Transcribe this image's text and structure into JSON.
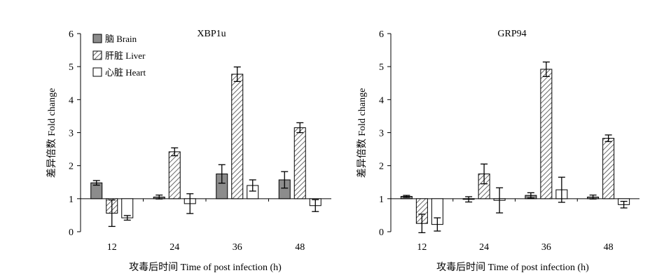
{
  "chart_data": [
    {
      "type": "bar",
      "title": "XBP1u",
      "xlabel": "攻毒后时间 Time of post infection (h)",
      "ylabel": "差异倍数 Fold change",
      "categories": [
        "12",
        "24",
        "36",
        "48"
      ],
      "ylim": [
        0,
        6
      ],
      "yticks": [
        "0",
        "1",
        "2",
        "3",
        "4",
        "5",
        "6"
      ],
      "baseline": 1,
      "legend_position": "top-left",
      "series": [
        {
          "name": "脑 Brain",
          "fill": "gray",
          "values": [
            1.48,
            1.05,
            1.75,
            1.57
          ],
          "errors": [
            0.07,
            0.06,
            0.28,
            0.25
          ]
        },
        {
          "name": "肝脏 Liver",
          "fill": "hatched",
          "values": [
            0.56,
            2.42,
            4.77,
            3.15
          ],
          "errors": [
            0.4,
            0.12,
            0.22,
            0.15
          ]
        },
        {
          "name": "心脏 Heart",
          "fill": "white",
          "values": [
            0.42,
            0.85,
            1.4,
            0.79
          ],
          "errors": [
            0.07,
            0.3,
            0.17,
            0.18
          ]
        }
      ]
    },
    {
      "type": "bar",
      "title": "GRP94",
      "xlabel": "攻毒后时间 Time of post infection (h)",
      "ylabel": "差异倍数 Fold change",
      "categories": [
        "12",
        "24",
        "36",
        "48"
      ],
      "ylim": [
        0,
        6
      ],
      "yticks": [
        "0",
        "1",
        "2",
        "3",
        "4",
        "5",
        "6"
      ],
      "baseline": 1,
      "series": [
        {
          "name": "脑 Brain",
          "fill": "gray",
          "values": [
            1.07,
            0.98,
            1.1,
            1.05
          ],
          "errors": [
            0.03,
            0.08,
            0.08,
            0.06
          ]
        },
        {
          "name": "肝脏 Liver",
          "fill": "hatched",
          "values": [
            0.25,
            1.75,
            4.92,
            2.83
          ],
          "errors": [
            0.28,
            0.3,
            0.22,
            0.1
          ]
        },
        {
          "name": "心脏 Heart",
          "fill": "white",
          "values": [
            0.22,
            0.95,
            1.27,
            0.82
          ],
          "errors": [
            0.2,
            0.38,
            0.38,
            0.1
          ]
        }
      ]
    }
  ],
  "colors": {
    "brain": "#8c8c8c",
    "liver_hatch": "#444444",
    "heart": "#ffffff",
    "axis": "#000000"
  }
}
